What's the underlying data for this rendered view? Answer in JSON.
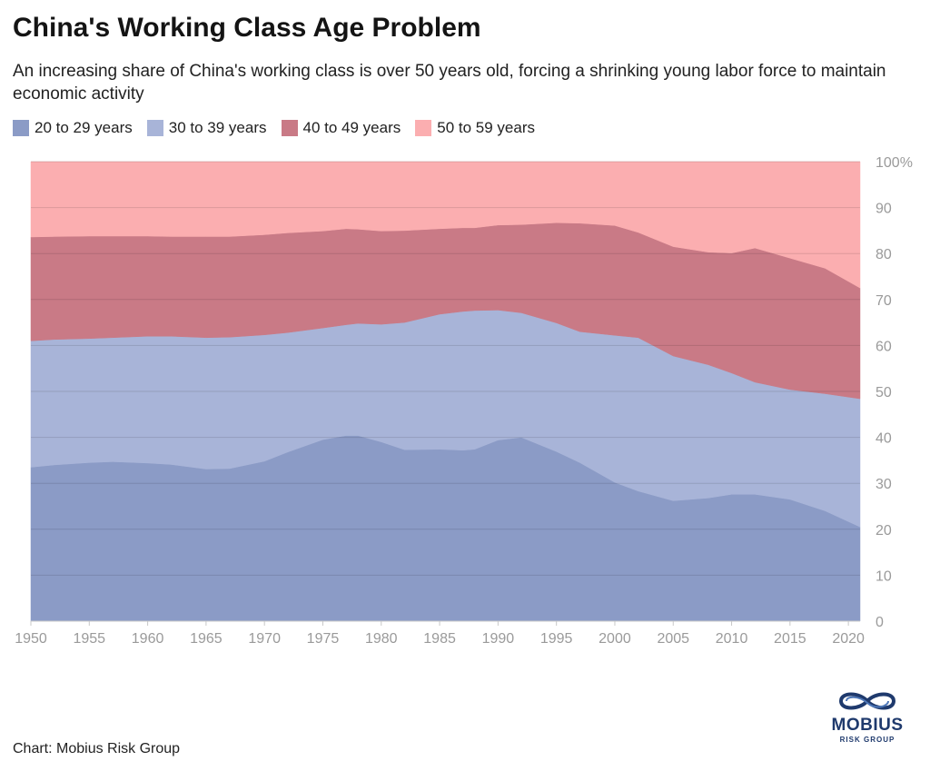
{
  "title": "China's Working Class Age Problem",
  "subtitle": "An increasing share of China's working class is over 50 years old, forcing a shrinking young labor force to maintain economic activity",
  "source": "Chart: Mobius Risk Group",
  "logo": {
    "name": "MOBIUS",
    "tagline": "RISK GROUP",
    "icon": "mobius-loop-icon",
    "color": "#1f3a6d"
  },
  "chart_data": {
    "type": "area",
    "stacked": true,
    "normalized": true,
    "x": [
      1950,
      1952,
      1955,
      1957,
      1960,
      1962,
      1965,
      1967,
      1970,
      1972,
      1975,
      1977,
      1978,
      1980,
      1982,
      1985,
      1987,
      1988,
      1990,
      1992,
      1995,
      1997,
      2000,
      2002,
      2005,
      2008,
      2010,
      2012,
      2015,
      2018,
      2021
    ],
    "series": [
      {
        "name": "20 to 29 years",
        "color": "#8b9bc6",
        "values": [
          33.5,
          34,
          34.5,
          34.7,
          34.4,
          34.1,
          33.1,
          33.2,
          34.8,
          36.8,
          39.5,
          40.4,
          40.4,
          39.0,
          37.3,
          37.4,
          37.2,
          37.4,
          39.4,
          40.0,
          36.9,
          34.5,
          30.2,
          28.3,
          26.2,
          26.8,
          27.6,
          27.6,
          26.5,
          24.0,
          20.5
        ]
      },
      {
        "name": "30 to 39 years",
        "color": "#a8b4d8",
        "values": [
          27.5,
          27.3,
          27.0,
          27.0,
          27.6,
          27.9,
          28.6,
          28.6,
          27.5,
          26.0,
          24.3,
          24.1,
          24.4,
          25.6,
          27.7,
          29.4,
          30.2,
          30.2,
          28.3,
          27.1,
          28.0,
          28.5,
          32.0,
          33.4,
          31.5,
          29.0,
          26.4,
          24.4,
          23.9,
          25.5,
          27.9
        ]
      },
      {
        "name": "40 to 49 years",
        "color": "#c97a86",
        "values": [
          22.6,
          22.4,
          22.3,
          22.1,
          21.8,
          21.7,
          22.0,
          21.9,
          21.8,
          21.7,
          21.1,
          20.9,
          20.5,
          20.3,
          20.0,
          18.6,
          18.2,
          18.0,
          18.5,
          19.2,
          21.8,
          23.6,
          23.9,
          22.9,
          23.8,
          24.5,
          26.1,
          29.2,
          28.6,
          27.3,
          24.1
        ]
      },
      {
        "name": "50 to 59 years",
        "color": "#fbaeb0",
        "values": [
          16.4,
          16.3,
          16.2,
          16.2,
          16.2,
          16.3,
          16.3,
          16.3,
          15.9,
          15.5,
          15.1,
          14.6,
          14.7,
          15.1,
          15.0,
          14.6,
          14.4,
          14.4,
          13.8,
          13.7,
          13.3,
          13.4,
          13.9,
          15.4,
          18.5,
          19.7,
          19.9,
          18.8,
          21.0,
          23.2,
          27.5
        ]
      }
    ],
    "x_ticks": [
      "1950",
      "1955",
      "1960",
      "1965",
      "1970",
      "1975",
      "1980",
      "1985",
      "1990",
      "1995",
      "2000",
      "2005",
      "2010",
      "2015",
      "2020"
    ],
    "y_ticks": [
      "0",
      "10",
      "20",
      "30",
      "40",
      "50",
      "60",
      "70",
      "80",
      "90",
      "100%"
    ],
    "xlim": [
      1950,
      2021
    ],
    "ylim": [
      0,
      100
    ],
    "grid": true,
    "legend_position": "top-left",
    "y_axis_side": "right"
  }
}
